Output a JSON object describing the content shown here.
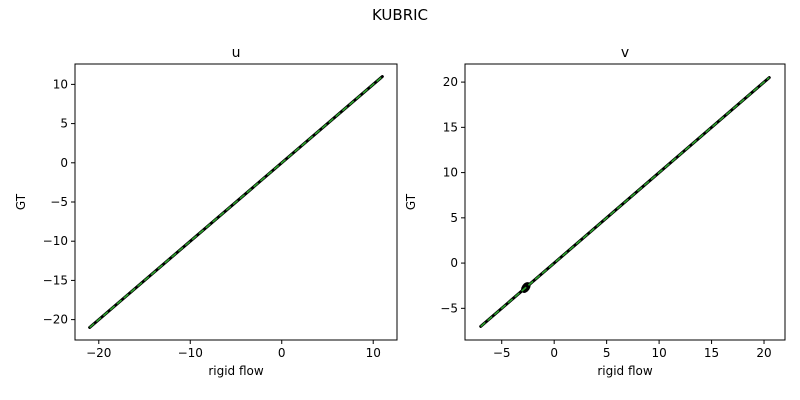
{
  "figure": {
    "suptitle": "KUBRIC"
  },
  "chart_data": [
    {
      "type": "scatter",
      "title": "u",
      "xlabel": "rigid flow",
      "ylabel": "GT",
      "xlim": [
        -22.6,
        12.6
      ],
      "ylim": [
        -22.6,
        12.6
      ],
      "xticks": [
        -20,
        -10,
        0,
        10
      ],
      "yticks": [
        -20,
        -15,
        -10,
        -5,
        0,
        5,
        10
      ],
      "grid": false,
      "series": [
        {
          "points_range": [
            -21.0,
            11.0
          ],
          "color": "#000000"
        },
        {
          "diagonal_range": [
            -21.0,
            11.0
          ],
          "color": "#2ca02c"
        }
      ]
    },
    {
      "type": "scatter",
      "title": "v",
      "xlabel": "rigid flow",
      "ylabel": "GT",
      "xlim": [
        -8.5,
        22.0
      ],
      "ylim": [
        -8.5,
        22.0
      ],
      "xticks": [
        -5,
        0,
        5,
        10,
        15,
        20
      ],
      "yticks": [
        -5,
        0,
        5,
        10,
        15,
        20
      ],
      "grid": false,
      "series": [
        {
          "points_range": [
            -7.0,
            20.5
          ],
          "cluster": [
            -2.8,
            -2.6
          ],
          "color": "#000000"
        },
        {
          "diagonal_range": [
            -7.0,
            20.5
          ],
          "color": "#2ca02c"
        }
      ]
    }
  ]
}
